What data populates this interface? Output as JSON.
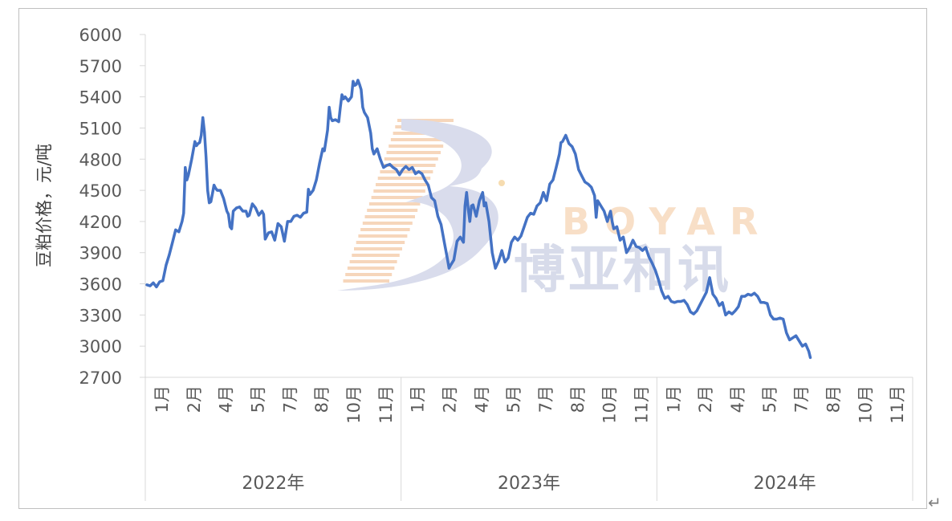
{
  "watermark": {
    "logo_letter": "B",
    "brand_en": "BOYAR",
    "brand_cn": "博亚和讯"
  },
  "return_mark": "↵",
  "chart_data": {
    "type": "line",
    "title": "",
    "ylabel": "豆粕价格，元/吨",
    "xlabel": "",
    "ylim": [
      2700,
      6000
    ],
    "yticks": [
      2700,
      3000,
      3300,
      3600,
      3900,
      4200,
      4500,
      4800,
      5100,
      5400,
      5700,
      6000
    ],
    "grid": false,
    "x_axis": {
      "total_slots": 24,
      "month_ticks": [
        {
          "slot": 0,
          "label": "1月"
        },
        {
          "slot": 1,
          "label": "2月"
        },
        {
          "slot": 2,
          "label": "4月"
        },
        {
          "slot": 3,
          "label": "5月"
        },
        {
          "slot": 4,
          "label": "7月"
        },
        {
          "slot": 5,
          "label": "8月"
        },
        {
          "slot": 6,
          "label": "10月"
        },
        {
          "slot": 7,
          "label": "11月"
        },
        {
          "slot": 8,
          "label": "1月"
        },
        {
          "slot": 9,
          "label": "2月"
        },
        {
          "slot": 10,
          "label": "4月"
        },
        {
          "slot": 11,
          "label": "5月"
        },
        {
          "slot": 12,
          "label": "7月"
        },
        {
          "slot": 13,
          "label": "8月"
        },
        {
          "slot": 14,
          "label": "10月"
        },
        {
          "slot": 15,
          "label": "11月"
        },
        {
          "slot": 16,
          "label": "1月"
        },
        {
          "slot": 17,
          "label": "2月"
        },
        {
          "slot": 18,
          "label": "4月"
        },
        {
          "slot": 19,
          "label": "5月"
        },
        {
          "slot": 20,
          "label": "7月"
        },
        {
          "slot": 21,
          "label": "8月"
        },
        {
          "slot": 22,
          "label": "10月"
        },
        {
          "slot": 23,
          "label": "11月"
        }
      ],
      "years": [
        {
          "label": "2022年",
          "start": 0,
          "end": 8
        },
        {
          "label": "2023年",
          "start": 8,
          "end": 16
        },
        {
          "label": "2024年",
          "start": 16,
          "end": 24
        }
      ]
    },
    "series": [
      {
        "name": "",
        "color": "#4472c4",
        "points": [
          [
            0.0,
            3590
          ],
          [
            0.1,
            3580
          ],
          [
            0.2,
            3610
          ],
          [
            0.3,
            3570
          ],
          [
            0.4,
            3620
          ],
          [
            0.5,
            3630
          ],
          [
            0.6,
            3780
          ],
          [
            0.7,
            3880
          ],
          [
            0.8,
            4000
          ],
          [
            0.9,
            4120
          ],
          [
            1.0,
            4100
          ],
          [
            1.1,
            4200
          ],
          [
            1.15,
            4280
          ],
          [
            1.2,
            4720
          ],
          [
            1.25,
            4600
          ],
          [
            1.3,
            4650
          ],
          [
            1.4,
            4800
          ],
          [
            1.5,
            4970
          ],
          [
            1.55,
            4930
          ],
          [
            1.6,
            4950
          ],
          [
            1.65,
            4960
          ],
          [
            1.7,
            5030
          ],
          [
            1.75,
            5200
          ],
          [
            1.8,
            5060
          ],
          [
            1.85,
            4820
          ],
          [
            1.9,
            4500
          ],
          [
            1.95,
            4380
          ],
          [
            2.0,
            4390
          ],
          [
            2.05,
            4470
          ],
          [
            2.1,
            4550
          ],
          [
            2.15,
            4520
          ],
          [
            2.2,
            4500
          ],
          [
            2.3,
            4500
          ],
          [
            2.4,
            4420
          ],
          [
            2.5,
            4300
          ],
          [
            2.55,
            4270
          ],
          [
            2.6,
            4150
          ],
          [
            2.65,
            4130
          ],
          [
            2.7,
            4300
          ],
          [
            2.8,
            4330
          ],
          [
            2.9,
            4340
          ],
          [
            3.0,
            4300
          ],
          [
            3.1,
            4300
          ],
          [
            3.15,
            4250
          ],
          [
            3.2,
            4260
          ],
          [
            3.3,
            4370
          ],
          [
            3.4,
            4330
          ],
          [
            3.5,
            4260
          ],
          [
            3.6,
            4300
          ],
          [
            3.65,
            4270
          ],
          [
            3.7,
            4030
          ],
          [
            3.8,
            4090
          ],
          [
            3.9,
            4100
          ],
          [
            4.0,
            4020
          ],
          [
            4.1,
            4180
          ],
          [
            4.2,
            4150
          ],
          [
            4.3,
            4010
          ],
          [
            4.4,
            4200
          ],
          [
            4.5,
            4200
          ],
          [
            4.6,
            4250
          ],
          [
            4.7,
            4260
          ],
          [
            4.8,
            4240
          ],
          [
            4.9,
            4280
          ],
          [
            5.0,
            4290
          ],
          [
            5.05,
            4510
          ],
          [
            5.1,
            4460
          ],
          [
            5.2,
            4500
          ],
          [
            5.3,
            4600
          ],
          [
            5.4,
            4760
          ],
          [
            5.5,
            4900
          ],
          [
            5.55,
            4880
          ],
          [
            5.6,
            4980
          ],
          [
            5.65,
            5080
          ],
          [
            5.7,
            5300
          ],
          [
            5.75,
            5200
          ],
          [
            5.8,
            5170
          ],
          [
            5.9,
            5180
          ],
          [
            6.0,
            5160
          ],
          [
            6.05,
            5300
          ],
          [
            6.1,
            5420
          ],
          [
            6.15,
            5380
          ],
          [
            6.2,
            5400
          ],
          [
            6.3,
            5360
          ],
          [
            6.4,
            5400
          ],
          [
            6.45,
            5550
          ],
          [
            6.5,
            5510
          ],
          [
            6.55,
            5520
          ],
          [
            6.6,
            5560
          ],
          [
            6.65,
            5520
          ],
          [
            6.7,
            5470
          ],
          [
            6.75,
            5300
          ],
          [
            6.8,
            5250
          ],
          [
            6.9,
            5200
          ],
          [
            7.0,
            5050
          ],
          [
            7.05,
            4900
          ],
          [
            7.1,
            4850
          ],
          [
            7.2,
            4900
          ],
          [
            7.3,
            4800
          ],
          [
            7.4,
            4720
          ],
          [
            7.5,
            4740
          ],
          [
            7.6,
            4750
          ],
          [
            7.7,
            4720
          ],
          [
            7.8,
            4700
          ],
          [
            7.9,
            4650
          ],
          [
            8.0,
            4700
          ],
          [
            8.1,
            4730
          ],
          [
            8.2,
            4700
          ],
          [
            8.3,
            4720
          ],
          [
            8.4,
            4660
          ],
          [
            8.5,
            4680
          ],
          [
            8.6,
            4660
          ],
          [
            8.7,
            4600
          ],
          [
            8.8,
            4550
          ],
          [
            8.9,
            4430
          ],
          [
            9.0,
            4400
          ],
          [
            9.1,
            4250
          ],
          [
            9.2,
            4170
          ],
          [
            9.3,
            4000
          ],
          [
            9.4,
            3840
          ],
          [
            9.45,
            3750
          ],
          [
            9.5,
            3780
          ],
          [
            9.6,
            3830
          ],
          [
            9.7,
            4010
          ],
          [
            9.8,
            4050
          ],
          [
            9.9,
            4000
          ],
          [
            9.95,
            4350
          ],
          [
            10.0,
            4480
          ],
          [
            10.05,
            4320
          ],
          [
            10.1,
            4200
          ],
          [
            10.15,
            4350
          ],
          [
            10.2,
            4360
          ],
          [
            10.3,
            4250
          ],
          [
            10.4,
            4400
          ],
          [
            10.5,
            4480
          ],
          [
            10.55,
            4350
          ],
          [
            10.6,
            4380
          ],
          [
            10.7,
            4200
          ],
          [
            10.8,
            3900
          ],
          [
            10.9,
            3750
          ],
          [
            11.0,
            3820
          ],
          [
            11.1,
            3920
          ],
          [
            11.2,
            3810
          ],
          [
            11.3,
            3850
          ],
          [
            11.4,
            4000
          ],
          [
            11.5,
            4050
          ],
          [
            11.6,
            4020
          ],
          [
            11.7,
            4060
          ],
          [
            11.8,
            4150
          ],
          [
            11.9,
            4240
          ],
          [
            12.0,
            4280
          ],
          [
            12.1,
            4270
          ],
          [
            12.2,
            4350
          ],
          [
            12.3,
            4380
          ],
          [
            12.4,
            4480
          ],
          [
            12.5,
            4400
          ],
          [
            12.6,
            4560
          ],
          [
            12.7,
            4600
          ],
          [
            12.8,
            4720
          ],
          [
            12.9,
            4850
          ],
          [
            12.95,
            4960
          ],
          [
            13.0,
            4970
          ],
          [
            13.1,
            5030
          ],
          [
            13.2,
            4950
          ],
          [
            13.3,
            4920
          ],
          [
            13.4,
            4850
          ],
          [
            13.5,
            4700
          ],
          [
            13.6,
            4640
          ],
          [
            13.7,
            4580
          ],
          [
            13.8,
            4560
          ],
          [
            13.9,
            4530
          ],
          [
            14.0,
            4450
          ],
          [
            14.05,
            4240
          ],
          [
            14.1,
            4400
          ],
          [
            14.2,
            4350
          ],
          [
            14.3,
            4300
          ],
          [
            14.4,
            4200
          ],
          [
            14.5,
            4300
          ],
          [
            14.55,
            4200
          ],
          [
            14.6,
            4130
          ],
          [
            14.7,
            4150
          ],
          [
            14.8,
            4020
          ],
          [
            14.9,
            4050
          ],
          [
            15.0,
            3900
          ],
          [
            15.1,
            3950
          ],
          [
            15.2,
            4020
          ],
          [
            15.3,
            3960
          ],
          [
            15.4,
            3950
          ],
          [
            15.5,
            3920
          ],
          [
            15.6,
            3950
          ],
          [
            15.7,
            3860
          ],
          [
            15.8,
            3800
          ],
          [
            15.9,
            3730
          ],
          [
            16.0,
            3640
          ],
          [
            16.1,
            3530
          ],
          [
            16.2,
            3460
          ],
          [
            16.3,
            3480
          ],
          [
            16.4,
            3430
          ],
          [
            16.5,
            3420
          ],
          [
            16.6,
            3430
          ],
          [
            16.7,
            3430
          ],
          [
            16.8,
            3440
          ],
          [
            16.9,
            3400
          ],
          [
            17.0,
            3330
          ],
          [
            17.1,
            3310
          ],
          [
            17.2,
            3340
          ],
          [
            17.3,
            3400
          ],
          [
            17.4,
            3460
          ],
          [
            17.5,
            3520
          ],
          [
            17.6,
            3660
          ],
          [
            17.7,
            3500
          ],
          [
            17.8,
            3460
          ],
          [
            17.9,
            3390
          ],
          [
            18.0,
            3420
          ],
          [
            18.1,
            3300
          ],
          [
            18.2,
            3330
          ],
          [
            18.3,
            3310
          ],
          [
            18.4,
            3340
          ],
          [
            18.5,
            3380
          ],
          [
            18.6,
            3480
          ],
          [
            18.7,
            3480
          ],
          [
            18.8,
            3500
          ],
          [
            18.9,
            3490
          ],
          [
            19.0,
            3510
          ],
          [
            19.1,
            3480
          ],
          [
            19.2,
            3420
          ],
          [
            19.3,
            3420
          ],
          [
            19.4,
            3410
          ],
          [
            19.5,
            3300
          ],
          [
            19.6,
            3260
          ],
          [
            19.7,
            3260
          ],
          [
            19.8,
            3270
          ],
          [
            19.9,
            3260
          ],
          [
            20.0,
            3130
          ],
          [
            20.1,
            3060
          ],
          [
            20.2,
            3080
          ],
          [
            20.3,
            3100
          ],
          [
            20.4,
            3050
          ],
          [
            20.5,
            3000
          ],
          [
            20.6,
            3020
          ],
          [
            20.7,
            2950
          ],
          [
            20.75,
            2890
          ]
        ]
      }
    ]
  }
}
